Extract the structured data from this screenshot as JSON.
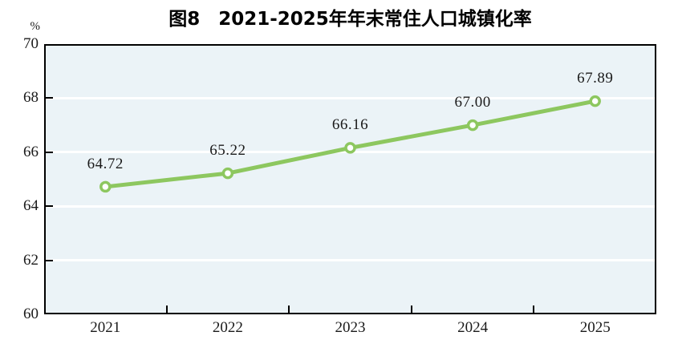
{
  "chart_data": {
    "type": "line",
    "title": "图8　2021-2025年年末常住人口城镇化率",
    "unit_label": "%",
    "categories": [
      "2021",
      "2022",
      "2023",
      "2024",
      "2025"
    ],
    "series": [
      {
        "name": "年末常住人口城镇化率",
        "values": [
          64.72,
          65.22,
          66.16,
          67.0,
          67.89
        ],
        "point_labels": [
          "64.72",
          "65.22",
          "66.16",
          "67.00",
          "67.89"
        ]
      }
    ],
    "xlabel": "",
    "ylabel": "%",
    "ylim": [
      60,
      70
    ],
    "yticks": [
      60,
      62,
      64,
      66,
      68,
      70
    ],
    "grid": "horizontal",
    "legend": "none",
    "colors": {
      "line": "#8dc75f",
      "marker_fill": "#ffffff",
      "plot_background": "#ebf3f7",
      "gridline": "#ffffff",
      "axis": "#000000",
      "text": "#1a1a1a"
    }
  }
}
